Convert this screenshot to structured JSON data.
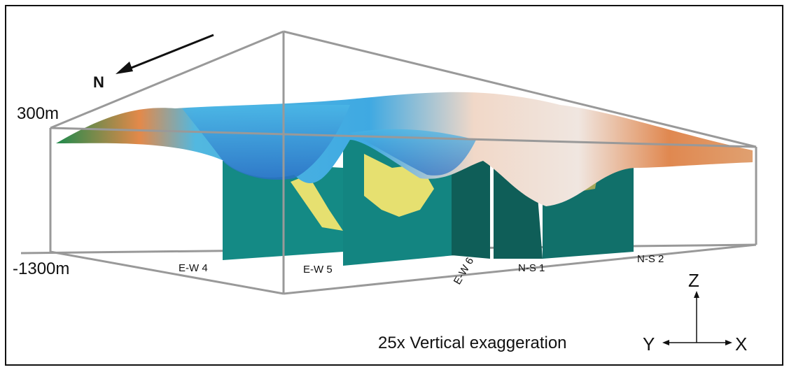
{
  "north": "N",
  "z_axis": {
    "top": "300m",
    "bottom": "-1300m"
  },
  "sections": [
    "E-W 4",
    "E-W 5",
    "E-W 6",
    "N-S 1",
    "N-S 2"
  ],
  "axes": {
    "z": "Z",
    "y": "Y",
    "x": "X"
  },
  "note": "25x Vertical exaggeration"
}
